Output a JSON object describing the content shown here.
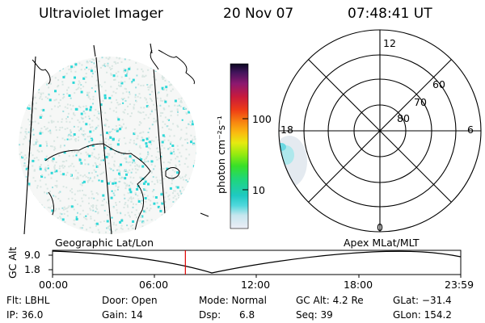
{
  "header": {
    "instrument": "Ultraviolet Imager",
    "date": "20 Nov 07",
    "time": "07:48:41 UT"
  },
  "colorbar": {
    "unit_label": "photon cm⁻²s⁻¹",
    "ticks": [
      "100",
      "10"
    ]
  },
  "polar_plot": {
    "mlt_labels": [
      "12",
      "18",
      "6",
      "0"
    ],
    "lat_labels": [
      "60",
      "70",
      "80"
    ]
  },
  "strip": {
    "left_title": "Geographic Lat/Lon",
    "right_title": "Apex MLat/MLT",
    "y_axis_label": "GC Alt",
    "y_max": "9.0",
    "y_min": "1.8",
    "time_ticks": [
      "00:00",
      "06:00",
      "12:00",
      "18:00",
      "23:59"
    ],
    "current_time_hours": 7.81
  },
  "status": {
    "row1": {
      "flt": "Flt: LBHL",
      "door": "Door: Open",
      "mode": "Mode: Normal",
      "gc_alt": "GC Alt: 4.2 Re",
      "glat": "GLat: −31.4"
    },
    "row2": {
      "ip": "IP: 36.0",
      "gain": "Gain: 14",
      "dsp_label": "Dsp:",
      "dsp_value": "6.8",
      "seq": "Seq: 39",
      "glon": "GLon: 154.2"
    }
  },
  "colors": {
    "speckle_light": "#d8e6e2",
    "speckle_cyan": "#2ed8d8",
    "current_time_marker": "#e00000"
  }
}
